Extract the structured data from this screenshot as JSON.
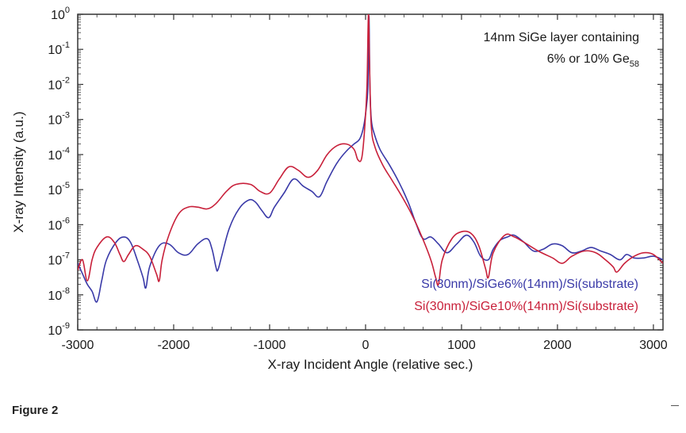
{
  "figure_caption": "Figure 2",
  "colors": {
    "series_6": "#3a3aa8",
    "series_10": "#c8203a",
    "axis": "#333333"
  },
  "chart_data": {
    "type": "line",
    "title": "",
    "xlabel": "X-ray Incident Angle (relative sec.)",
    "ylabel": "X-ray Intensity (a.u.)",
    "xlim": [
      -3000,
      3100
    ],
    "ylim_log10": [
      -9,
      0
    ],
    "yscale": "log",
    "grid": false,
    "x_ticks": [
      -3000,
      -2000,
      -1000,
      0,
      1000,
      2000,
      3000
    ],
    "x_tick_labels": [
      "-3000",
      "-2000",
      "-1000",
      "0",
      "1000",
      "2000",
      "3000"
    ],
    "y_tick_bases": [
      "10",
      "10",
      "10",
      "10",
      "10",
      "10",
      "10",
      "10",
      "10",
      "10"
    ],
    "y_tick_exponents": [
      "0",
      "-1",
      "-2",
      "-3",
      "-4",
      "-5",
      "-6",
      "-7",
      "-8",
      "-9"
    ],
    "y_tick_log10": [
      0,
      -1,
      -2,
      -3,
      -4,
      -5,
      -6,
      -7,
      -8,
      -9
    ],
    "annotation": {
      "line1": "14nm SiGe layer containing",
      "line2": "6% or 10% Ge",
      "subscript": "58"
    },
    "legend_position": "bottom-right",
    "series": [
      {
        "name": "Si(30nm)/SiGe6%(14nm)/Si(substrate)",
        "color": "#3a3aa8",
        "points": [
          [
            -3000,
            -7.1
          ],
          [
            -2950,
            -7.4
          ],
          [
            -2900,
            -7.7
          ],
          [
            -2850,
            -7.9
          ],
          [
            -2800,
            -8.2
          ],
          [
            -2750,
            -7.6
          ],
          [
            -2700,
            -7.0
          ],
          [
            -2600,
            -6.5
          ],
          [
            -2520,
            -6.35
          ],
          [
            -2450,
            -6.5
          ],
          [
            -2380,
            -7.0
          ],
          [
            -2320,
            -7.5
          ],
          [
            -2290,
            -7.8
          ],
          [
            -2250,
            -7.2
          ],
          [
            -2150,
            -6.6
          ],
          [
            -2050,
            -6.55
          ],
          [
            -1950,
            -6.8
          ],
          [
            -1850,
            -6.85
          ],
          [
            -1750,
            -6.55
          ],
          [
            -1650,
            -6.4
          ],
          [
            -1600,
            -6.7
          ],
          [
            -1560,
            -7.2
          ],
          [
            -1540,
            -7.3
          ],
          [
            -1500,
            -6.9
          ],
          [
            -1420,
            -6.1
          ],
          [
            -1320,
            -5.55
          ],
          [
            -1220,
            -5.3
          ],
          [
            -1150,
            -5.35
          ],
          [
            -1080,
            -5.6
          ],
          [
            -1010,
            -5.8
          ],
          [
            -950,
            -5.5
          ],
          [
            -850,
            -5.1
          ],
          [
            -750,
            -4.7
          ],
          [
            -650,
            -4.9
          ],
          [
            -560,
            -5.05
          ],
          [
            -480,
            -5.2
          ],
          [
            -400,
            -4.75
          ],
          [
            -300,
            -4.25
          ],
          [
            -200,
            -3.9
          ],
          [
            -120,
            -3.7
          ],
          [
            -60,
            -3.55
          ],
          [
            -20,
            -3.2
          ],
          [
            10,
            -2.6
          ],
          [
            25,
            -2.0
          ],
          [
            35,
            -0.05
          ],
          [
            45,
            -2.0
          ],
          [
            60,
            -3.0
          ],
          [
            90,
            -3.4
          ],
          [
            150,
            -3.85
          ],
          [
            250,
            -4.3
          ],
          [
            350,
            -4.8
          ],
          [
            450,
            -5.4
          ],
          [
            530,
            -6.0
          ],
          [
            600,
            -6.4
          ],
          [
            680,
            -6.35
          ],
          [
            760,
            -6.55
          ],
          [
            850,
            -6.8
          ],
          [
            950,
            -6.55
          ],
          [
            1050,
            -6.3
          ],
          [
            1130,
            -6.5
          ],
          [
            1200,
            -6.9
          ],
          [
            1280,
            -7.0
          ],
          [
            1330,
            -6.7
          ],
          [
            1400,
            -6.45
          ],
          [
            1480,
            -6.35
          ],
          [
            1550,
            -6.3
          ],
          [
            1650,
            -6.5
          ],
          [
            1750,
            -6.75
          ],
          [
            1850,
            -6.7
          ],
          [
            1950,
            -6.55
          ],
          [
            2050,
            -6.6
          ],
          [
            2150,
            -6.8
          ],
          [
            2250,
            -6.75
          ],
          [
            2350,
            -6.65
          ],
          [
            2450,
            -6.75
          ],
          [
            2550,
            -6.85
          ],
          [
            2650,
            -7.0
          ],
          [
            2720,
            -6.85
          ],
          [
            2800,
            -6.95
          ],
          [
            2900,
            -6.95
          ],
          [
            3000,
            -6.9
          ],
          [
            3100,
            -7.0
          ]
        ]
      },
      {
        "name": "Si(30nm)/SiGe10%(14nm)/Si(substrate)",
        "color": "#c8203a",
        "points": [
          [
            -3000,
            -7.3
          ],
          [
            -2950,
            -7.0
          ],
          [
            -2900,
            -7.6
          ],
          [
            -2850,
            -7.0
          ],
          [
            -2800,
            -6.65
          ],
          [
            -2700,
            -6.35
          ],
          [
            -2620,
            -6.5
          ],
          [
            -2560,
            -6.85
          ],
          [
            -2520,
            -7.05
          ],
          [
            -2470,
            -6.85
          ],
          [
            -2400,
            -6.6
          ],
          [
            -2320,
            -6.7
          ],
          [
            -2250,
            -6.9
          ],
          [
            -2180,
            -7.4
          ],
          [
            -2150,
            -7.6
          ],
          [
            -2120,
            -7.0
          ],
          [
            -2050,
            -6.3
          ],
          [
            -1950,
            -5.7
          ],
          [
            -1850,
            -5.5
          ],
          [
            -1750,
            -5.5
          ],
          [
            -1650,
            -5.55
          ],
          [
            -1560,
            -5.4
          ],
          [
            -1450,
            -5.05
          ],
          [
            -1350,
            -4.85
          ],
          [
            -1200,
            -4.85
          ],
          [
            -1100,
            -5.05
          ],
          [
            -1000,
            -5.1
          ],
          [
            -900,
            -4.7
          ],
          [
            -800,
            -4.35
          ],
          [
            -700,
            -4.45
          ],
          [
            -600,
            -4.65
          ],
          [
            -500,
            -4.45
          ],
          [
            -400,
            -4.0
          ],
          [
            -300,
            -3.75
          ],
          [
            -200,
            -3.7
          ],
          [
            -120,
            -3.85
          ],
          [
            -80,
            -4.15
          ],
          [
            -40,
            -4.1
          ],
          [
            -10,
            -3.3
          ],
          [
            15,
            -2.0
          ],
          [
            30,
            0.0
          ],
          [
            42,
            -1.5
          ],
          [
            60,
            -3.2
          ],
          [
            100,
            -3.8
          ],
          [
            180,
            -4.3
          ],
          [
            280,
            -4.75
          ],
          [
            380,
            -5.2
          ],
          [
            480,
            -5.7
          ],
          [
            580,
            -6.3
          ],
          [
            680,
            -7.0
          ],
          [
            730,
            -7.5
          ],
          [
            760,
            -7.7
          ],
          [
            800,
            -7.0
          ],
          [
            900,
            -6.4
          ],
          [
            1000,
            -6.2
          ],
          [
            1100,
            -6.25
          ],
          [
            1180,
            -6.6
          ],
          [
            1250,
            -7.25
          ],
          [
            1280,
            -7.5
          ],
          [
            1330,
            -6.8
          ],
          [
            1450,
            -6.3
          ],
          [
            1550,
            -6.35
          ],
          [
            1650,
            -6.5
          ],
          [
            1800,
            -6.75
          ],
          [
            1950,
            -6.95
          ],
          [
            2050,
            -7.1
          ],
          [
            2150,
            -6.9
          ],
          [
            2280,
            -6.75
          ],
          [
            2400,
            -6.8
          ],
          [
            2500,
            -7.0
          ],
          [
            2580,
            -7.2
          ],
          [
            2620,
            -7.35
          ],
          [
            2700,
            -7.1
          ],
          [
            2800,
            -6.9
          ],
          [
            2900,
            -6.8
          ],
          [
            3000,
            -6.85
          ],
          [
            3100,
            -7.1
          ]
        ]
      }
    ]
  }
}
